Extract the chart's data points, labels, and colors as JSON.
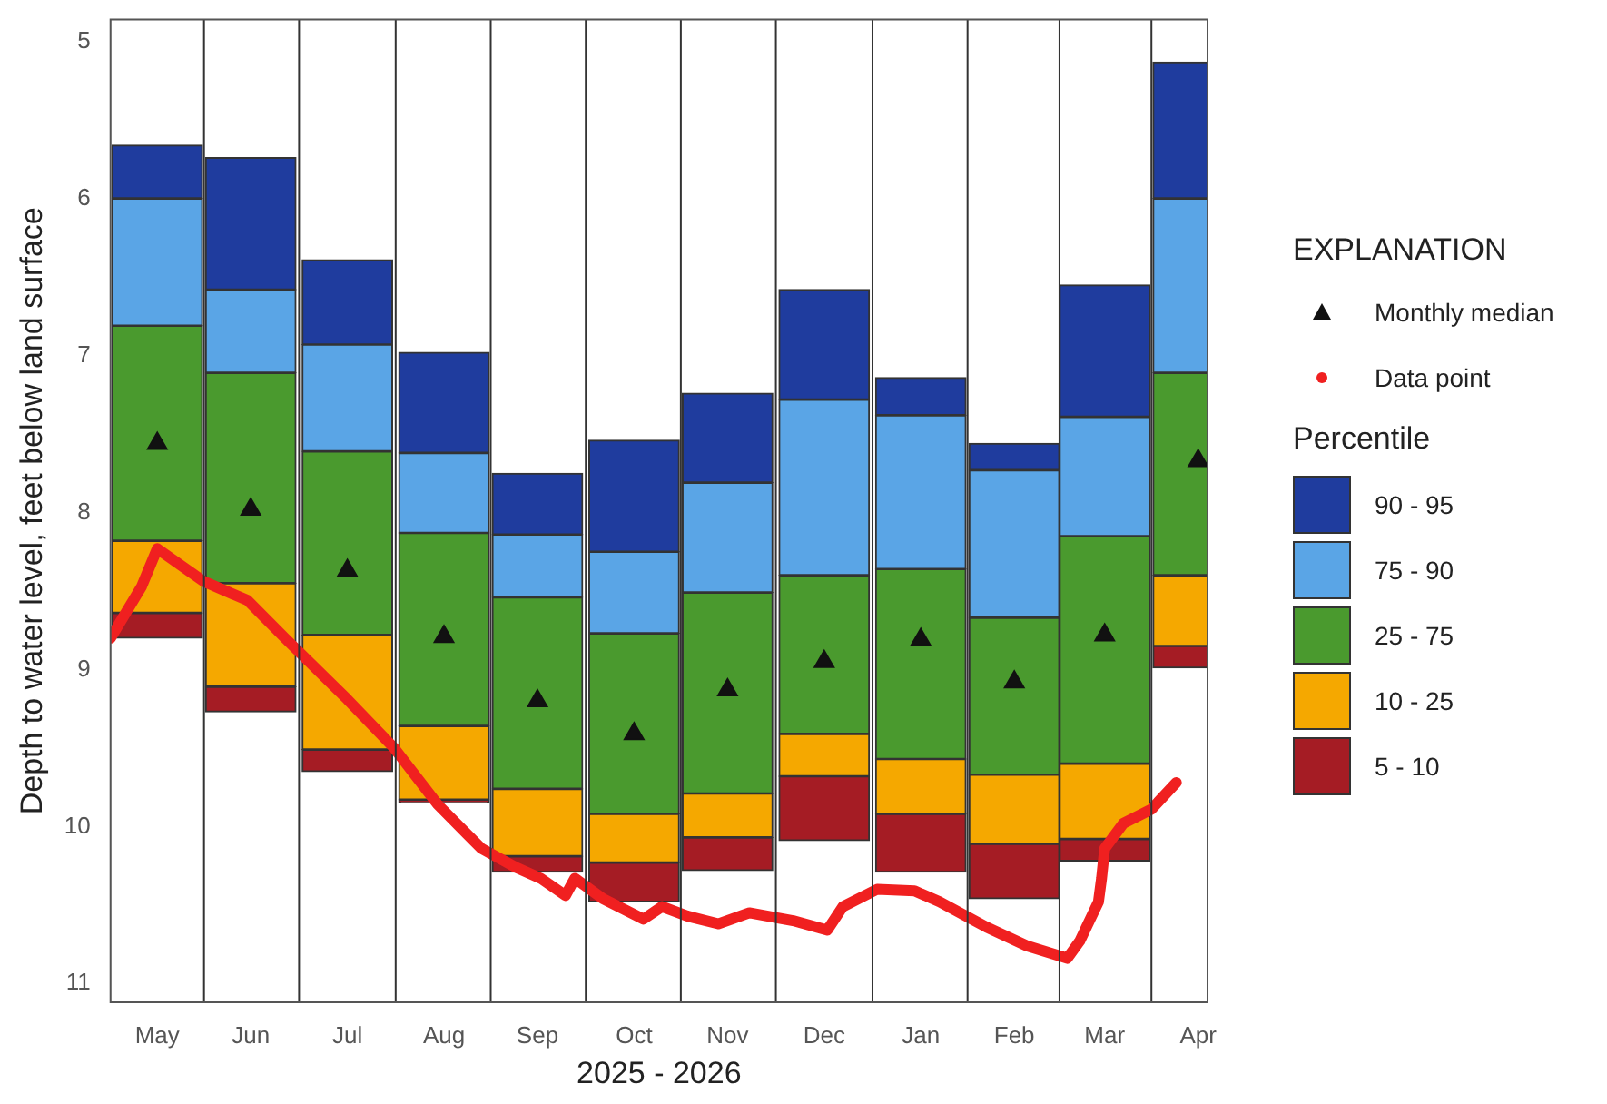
{
  "chart_data": {
    "type": "bar",
    "xlabel": "2025 - 2026",
    "ylabel": "Depth to water level, feet below land surface",
    "legend_title": "EXPLANATION",
    "annotations": [
      "Percentile"
    ],
    "x": [
      "2025-05-16",
      "2025-06-15",
      "2025-07-16",
      "2025-08-16",
      "2025-09-15",
      "2025-10-16",
      "2025-11-15",
      "2025-12-16",
      "2026-01-16",
      "2026-02-15",
      "2026-03-16",
      "2026-04-15"
    ],
    "xlim": [
      "2025-05-01",
      "2026-04-18"
    ],
    "xticks": [
      {
        "value": "2025-05-16",
        "label": "May"
      },
      {
        "value": "2025-06-15",
        "label": "Jun"
      },
      {
        "value": "2025-07-16",
        "label": "Jul"
      },
      {
        "value": "2025-08-16",
        "label": "Aug"
      },
      {
        "value": "2025-09-15",
        "label": "Sep"
      },
      {
        "value": "2025-10-16",
        "label": "Oct"
      },
      {
        "value": "2025-11-15",
        "label": "Nov"
      },
      {
        "value": "2025-12-16",
        "label": "Dec"
      },
      {
        "value": "2026-01-16",
        "label": "Jan"
      },
      {
        "value": "2026-02-15",
        "label": "Feb"
      },
      {
        "value": "2026-03-16",
        "label": "Mar"
      },
      {
        "value": "2026-04-15",
        "label": "Apr"
      }
    ],
    "ylim": [
      11.12,
      4.86
    ],
    "yticks": [
      5,
      6,
      7,
      8,
      9,
      10,
      11
    ],
    "grid": "x",
    "legend": "right",
    "series": [
      {
        "name": "Monthly median",
        "type": "scatter",
        "marker": "triangle",
        "color": "#111111",
        "x": [
          "2025-05-16",
          "2025-06-15",
          "2025-07-16",
          "2025-08-16",
          "2025-09-15",
          "2025-10-16",
          "2025-11-15",
          "2025-12-16",
          "2026-01-16",
          "2026-02-15",
          "2026-03-16",
          "2026-04-15"
        ],
        "values": [
          7.56,
          7.98,
          8.37,
          8.79,
          9.2,
          9.41,
          9.13,
          8.95,
          8.81,
          9.08,
          8.78,
          7.67
        ]
      },
      {
        "name": "Data point",
        "type": "line",
        "marker": "none",
        "color": "#f02020",
        "x": [
          "2025-05-01",
          "2025-05-11",
          "2025-05-16",
          "2025-05-31",
          "2025-06-14",
          "2025-06-26",
          "2025-07-16",
          "2025-07-31",
          "2025-08-14",
          "2025-08-28",
          "2025-09-08",
          "2025-09-16",
          "2025-09-24",
          "2025-09-27",
          "2025-10-06",
          "2025-10-19",
          "2025-10-25",
          "2025-11-02",
          "2025-11-12",
          "2025-11-22",
          "2025-12-06",
          "2025-12-17",
          "2025-12-22",
          "2026-01-02",
          "2026-01-14",
          "2026-01-22",
          "2026-02-06",
          "2026-02-19",
          "2026-03-04",
          "2026-03-08",
          "2026-03-14",
          "2026-03-15",
          "2026-03-16",
          "2026-03-22",
          "2026-03-31",
          "2026-04-08"
        ],
        "values": [
          8.8,
          8.47,
          8.23,
          8.44,
          8.56,
          8.8,
          9.19,
          9.5,
          9.86,
          10.14,
          10.26,
          10.33,
          10.44,
          10.33,
          10.46,
          10.59,
          10.51,
          10.57,
          10.62,
          10.55,
          10.6,
          10.66,
          10.51,
          10.4,
          10.41,
          10.48,
          10.64,
          10.76,
          10.84,
          10.73,
          10.48,
          10.33,
          10.14,
          9.98,
          9.89,
          9.72
        ]
      },
      {
        "name": "90 - 95",
        "color": "#1f3c9e",
        "base": [
          5.66,
          5.74,
          6.39,
          6.98,
          7.75,
          7.54,
          7.24,
          6.58,
          7.14,
          7.56,
          6.55,
          5.13
        ],
        "values": [
          0.34,
          0.84,
          0.54,
          0.64,
          0.39,
          0.71,
          0.57,
          0.7,
          0.24,
          0.17,
          0.84,
          0.87
        ]
      },
      {
        "name": "75 - 90",
        "color": "#5aa5e6",
        "base": [
          6.0,
          6.58,
          6.93,
          7.62,
          8.14,
          8.25,
          7.81,
          7.28,
          7.38,
          7.73,
          7.39,
          6.0
        ],
        "values": [
          0.81,
          0.53,
          0.68,
          0.51,
          0.4,
          0.52,
          0.7,
          1.12,
          0.98,
          0.94,
          0.76,
          1.11
        ]
      },
      {
        "name": "25 - 75",
        "color": "#4a9a2e",
        "base": [
          6.81,
          7.11,
          7.61,
          8.13,
          8.54,
          8.77,
          8.51,
          8.4,
          8.36,
          8.67,
          8.15,
          7.11
        ],
        "values": [
          1.37,
          1.34,
          1.17,
          1.23,
          1.22,
          1.15,
          1.28,
          1.01,
          1.21,
          1.0,
          1.45,
          1.29
        ]
      },
      {
        "name": "10 - 25",
        "color": "#f5a800",
        "base": [
          8.18,
          8.45,
          8.78,
          9.36,
          9.76,
          9.92,
          9.79,
          9.41,
          9.57,
          9.67,
          9.6,
          8.4
        ],
        "values": [
          0.46,
          0.66,
          0.73,
          0.47,
          0.43,
          0.31,
          0.28,
          0.27,
          0.35,
          0.44,
          0.48,
          0.45
        ]
      },
      {
        "name": "5 - 10",
        "color": "#a51c24",
        "base": [
          8.64,
          9.11,
          9.51,
          9.83,
          10.19,
          10.23,
          10.07,
          9.68,
          9.92,
          10.11,
          10.08,
          8.85
        ],
        "values": [
          0.16,
          0.16,
          0.14,
          0.02,
          0.1,
          0.25,
          0.21,
          0.41,
          0.37,
          0.35,
          0.14,
          0.14
        ]
      }
    ]
  }
}
